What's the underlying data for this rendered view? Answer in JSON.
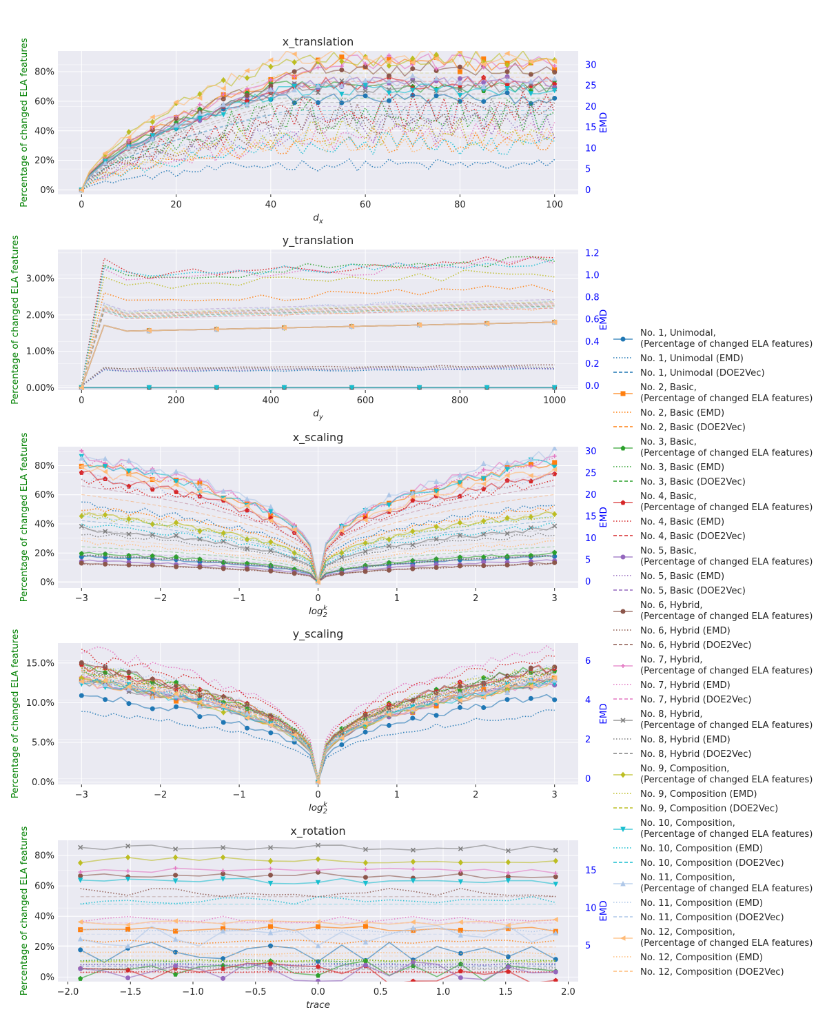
{
  "chart_data": [
    {
      "type": "line",
      "title": "x_translation",
      "xlabel": "d",
      "xlabel_sub": "x",
      "ylabel": "Percentage of changed ELA features",
      "ylabel_right": "EMD",
      "xlim": [
        -5,
        105
      ],
      "ylim": [
        -3,
        94
      ],
      "ylim_right": [
        -1.1,
        33.3
      ],
      "x_ticks": [
        0,
        20,
        40,
        60,
        80,
        100
      ],
      "y_ticks": [
        "0%",
        "20%",
        "40%",
        "60%",
        "80%"
      ],
      "y_tick_values": [
        0,
        20,
        40,
        60,
        80
      ],
      "y_right_ticks": [
        0,
        5,
        10,
        15,
        20,
        25,
        30
      ],
      "x_range": [
        0,
        100
      ],
      "profile": "translation",
      "left_final": [
        62,
        85,
        70,
        72,
        73,
        82,
        87,
        70,
        89,
        68,
        74,
        90
      ],
      "right_final": [
        6,
        12,
        18,
        19,
        15,
        17,
        13,
        18,
        14,
        11,
        16,
        12
      ],
      "doe2vec_final": [
        18,
        26,
        22,
        25,
        20,
        23,
        26,
        21,
        28,
        19,
        24,
        27
      ]
    },
    {
      "type": "line",
      "title": "y_translation",
      "xlabel": "d",
      "xlabel_sub": "y",
      "ylabel": "Percentage of changed ELA features",
      "ylabel_right": "EMD",
      "xlim": [
        -50,
        1050
      ],
      "ylim": [
        -0.07,
        3.8
      ],
      "ylim_right": [
        -0.04,
        1.23
      ],
      "x_ticks": [
        0,
        200,
        400,
        600,
        800,
        1000
      ],
      "y_ticks": [
        "0.00%",
        "1.00%",
        "2.00%",
        "3.00%"
      ],
      "y_tick_values": [
        0,
        1,
        2,
        3
      ],
      "y_right_ticks": [
        "0.0",
        "0.2",
        "0.4",
        "0.6",
        "0.8",
        "1.0",
        "1.2"
      ],
      "y_right_tick_values": [
        0,
        0.2,
        0.4,
        0.6,
        0.8,
        1.0,
        1.2
      ],
      "x_range": [
        0,
        1000
      ],
      "profile": "ytrans",
      "left_final": [
        0,
        1.8,
        1.8,
        1.8,
        1.8,
        0,
        1.8,
        0,
        1.8,
        0,
        1.8,
        1.8
      ],
      "right_final": [
        0.15,
        0.88,
        1.14,
        1.15,
        0.16,
        0.18,
        1.12,
        0.17,
        1.03,
        1.14,
        0.76,
        0.72
      ],
      "doe2vec_final": [
        0.75,
        0.75,
        0.72,
        0.7,
        0.78,
        0.73,
        0.74,
        0.72,
        0.76,
        0.71,
        0.77,
        0.74
      ]
    },
    {
      "type": "line",
      "title": "x_scaling",
      "xlabel": "log",
      "xlabel_sub": "2",
      "xlabel_sup": "k",
      "ylabel": "Percentage of changed ELA features",
      "ylabel_right": "EMD",
      "xlim": [
        -3.3,
        3.3
      ],
      "ylim": [
        -4,
        93
      ],
      "ylim_right": [
        -1.5,
        31
      ],
      "x_ticks": [
        -3,
        -2,
        -1,
        0,
        1,
        2,
        3
      ],
      "y_ticks": [
        "0%",
        "20%",
        "40%",
        "60%",
        "80%"
      ],
      "y_tick_values": [
        0,
        20,
        40,
        60,
        80
      ],
      "y_right_ticks": [
        0,
        5,
        10,
        15,
        20,
        25,
        30
      ],
      "x_range": [
        -3,
        3
      ],
      "profile": "scaling",
      "left_final": [
        18,
        83,
        20,
        74,
        15,
        13,
        86,
        37,
        47,
        83,
        88,
        77
      ],
      "right_final": [
        18,
        17,
        6,
        23,
        6,
        4,
        28,
        11,
        15,
        13,
        24,
        9
      ],
      "doe2vec_final": [
        14,
        20,
        8,
        22,
        7,
        6,
        25,
        12,
        16,
        15,
        22,
        10
      ]
    },
    {
      "type": "line",
      "title": "y_scaling",
      "xlabel": "log",
      "xlabel_sub": "2",
      "xlabel_sup": "k",
      "ylabel": "Percentage of changed ELA features",
      "ylabel_right": "EMD",
      "xlim": [
        -3.3,
        3.3
      ],
      "ylim": [
        -0.3,
        17.5
      ],
      "ylim_right": [
        -0.3,
        6.9
      ],
      "x_ticks": [
        -3,
        -2,
        -1,
        0,
        1,
        2,
        3
      ],
      "y_ticks": [
        "0.0%",
        "5.0%",
        "10.0%",
        "15.0%"
      ],
      "y_tick_values": [
        0,
        5,
        10,
        15
      ],
      "y_right_ticks": [
        0,
        2,
        4,
        6
      ],
      "x_range": [
        -3,
        3
      ],
      "profile": "scaling",
      "left_final": [
        10.9,
        12.7,
        14.5,
        14.5,
        12.7,
        14.5,
        12.7,
        12.7,
        12.7,
        12.7,
        12.7,
        12.7
      ],
      "right_final": [
        3.4,
        5.4,
        5.6,
        6.3,
        5.2,
        5.5,
        6.6,
        5.3,
        5.7,
        5.1,
        5.8,
        5.3
      ],
      "doe2vec_final": [
        4.9,
        5.2,
        5.4,
        5.6,
        5.0,
        5.3,
        5.5,
        5.1,
        5.4,
        5.0,
        5.3,
        5.2
      ]
    },
    {
      "type": "line",
      "title": "x_rotation",
      "xlabel": "trace",
      "ylabel": "Percentage of changed ELA features",
      "ylabel_right": "EMD",
      "xlim": [
        -2.08,
        2.08
      ],
      "ylim": [
        -3,
        90
      ],
      "ylim_right": [
        0.2,
        19
      ],
      "x_ticks": [
        -2.0,
        -1.5,
        -1.0,
        -0.5,
        0.0,
        0.5,
        1.0,
        1.5,
        2.0
      ],
      "x_tick_labels": [
        "−2.0",
        "−1.5",
        "−1.0",
        "−0.5",
        "0.0",
        "0.5",
        "1.0",
        "1.5",
        "2.0"
      ],
      "y_ticks": [
        "0%",
        "20%",
        "40%",
        "60%",
        "80%"
      ],
      "y_tick_values": [
        0,
        20,
        40,
        60,
        80
      ],
      "y_right_ticks": [
        5,
        10,
        15
      ],
      "x_range": [
        -1.9,
        1.9
      ],
      "profile": "flat",
      "left_final": [
        16,
        32,
        4,
        2,
        3,
        67,
        70,
        85,
        77,
        63,
        27,
        36
      ],
      "right_final": [
        2.5,
        5.5,
        3,
        1.5,
        2.5,
        12,
        8.5,
        2,
        3,
        11,
        7,
        4
      ],
      "doe2vec_final": [
        2.2,
        4.8,
        2.8,
        1.4,
        2.3,
        11.5,
        8.0,
        1.8,
        2.8,
        10.5,
        6.5,
        3.6
      ]
    }
  ],
  "legend": {
    "series": [
      {
        "base": "No. 1, Unimodal",
        "color": "#1f77b4",
        "marker": "circle"
      },
      {
        "base": "No. 2, Basic",
        "color": "#ff7f0e",
        "marker": "square"
      },
      {
        "base": "No. 3, Basic",
        "color": "#2ca02c",
        "marker": "pentagon"
      },
      {
        "base": "No. 4, Basic",
        "color": "#d62728",
        "marker": "star"
      },
      {
        "base": "No. 5, Basic",
        "color": "#9467bd",
        "marker": "hexagon"
      },
      {
        "base": "No. 6, Hybrid",
        "color": "#8c564b",
        "marker": "octagon"
      },
      {
        "base": "No. 7, Hybrid",
        "color": "#e377c2",
        "marker": "plus"
      },
      {
        "base": "No. 8, Hybrid",
        "color": "#7f7f7f",
        "marker": "x"
      },
      {
        "base": "No. 9, Composition",
        "color": "#bcbd22",
        "marker": "diamond"
      },
      {
        "base": "No. 10, Composition",
        "color": "#17becf",
        "marker": "triangle-down"
      },
      {
        "base": "No. 11, Composition",
        "color": "#aec7e8",
        "marker": "triangle-up"
      },
      {
        "base": "No. 12, Composition",
        "color": "#ffbb78",
        "marker": "triangle-left"
      }
    ],
    "suffix_ela": "(Percentage of changed ELA features)",
    "suffix_emd": "(EMD)",
    "suffix_doe": "(DOE2Vec)"
  },
  "colors": {
    "axes_bg": "#eaeaf2",
    "grid": "#ffffff",
    "left_label": "#008000",
    "right_label": "#0000ff"
  }
}
